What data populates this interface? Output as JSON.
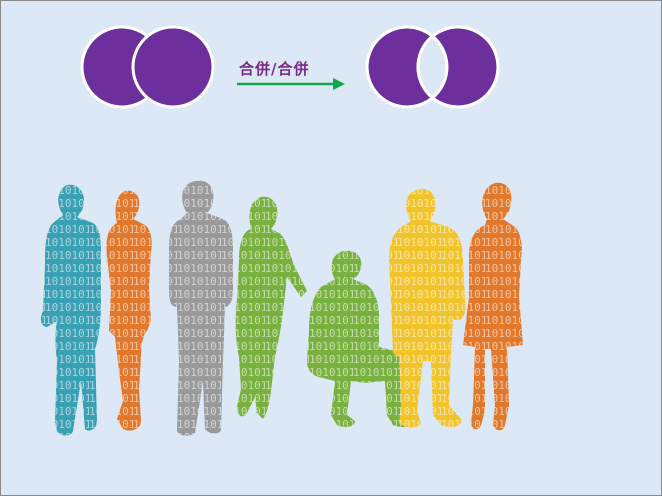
{
  "diagram": {
    "merge_label": "合併/合併",
    "colors": {
      "circle": "#6c2f9c",
      "circle_stroke": "#ffffff",
      "arrow": "#10a84a",
      "label": "#7a2a8a",
      "background": "#dce8f5",
      "people": [
        "#3aa0b4",
        "#e2782b",
        "#9a9a9a",
        "#78b13f",
        "#78b13f",
        "#f2c42c",
        "#e2782b"
      ]
    },
    "binary_glyphs": "1010101"
  }
}
